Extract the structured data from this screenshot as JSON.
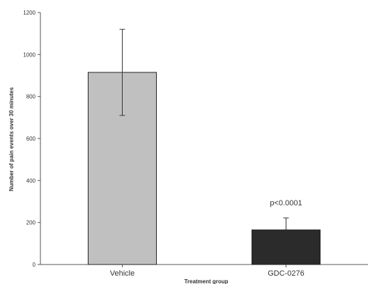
{
  "chart_data": {
    "type": "bar",
    "title": "",
    "xlabel": "Treatment group",
    "ylabel": "Number of pain events over 30 minutes",
    "categories": [
      "Vehicle",
      "GDC-0276"
    ],
    "values": [
      915,
      165
    ],
    "error_upper": [
      1120,
      222
    ],
    "error_lower": [
      710,
      165
    ],
    "bar_colors": [
      "#c0c0c0",
      "#2b2b2b"
    ],
    "ylim": [
      0,
      1200
    ],
    "yticks": [
      "0",
      "200",
      "400",
      "600",
      "800",
      "1000",
      "1200"
    ],
    "annotations": [
      {
        "category": "GDC-0276",
        "text": "p<0.0001"
      }
    ],
    "grid": false,
    "legend": "none"
  }
}
